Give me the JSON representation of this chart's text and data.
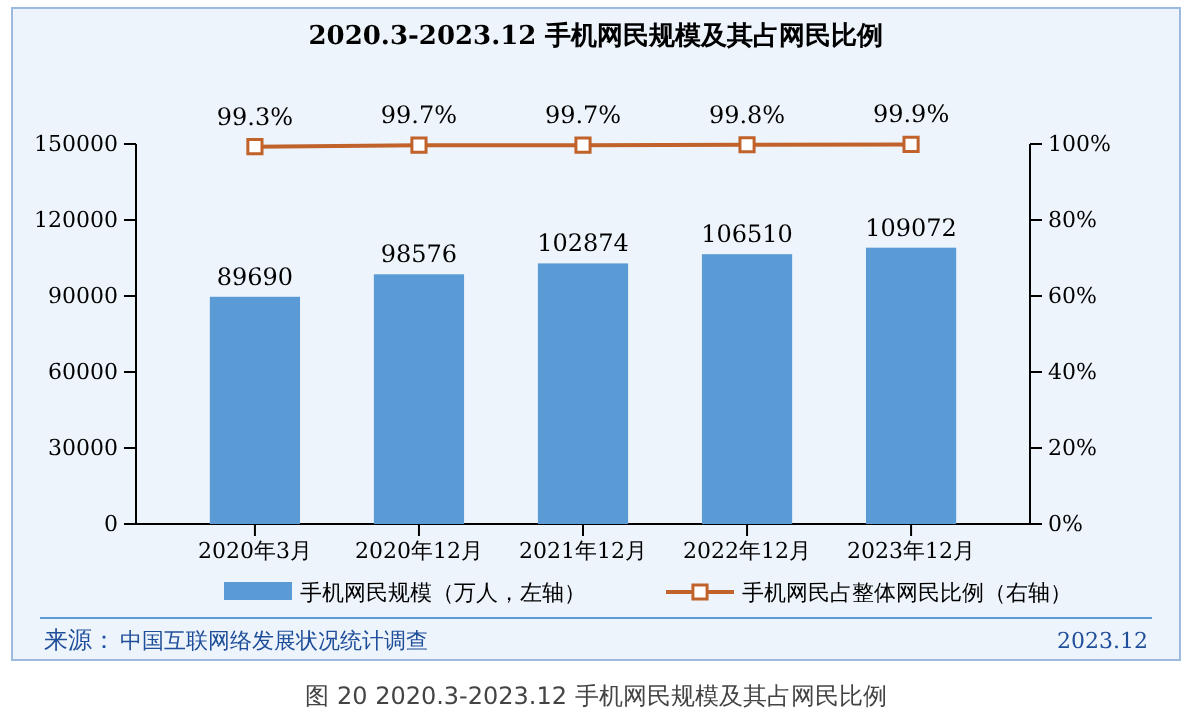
{
  "chart_data": {
    "type": "bar",
    "title": "2020.3-2023.12 手机网民规模及其占网民比例",
    "categories": [
      "2020年3月",
      "2020年12月",
      "2021年12月",
      "2022年12月",
      "2023年12月"
    ],
    "series": [
      {
        "name": "手机网民规模（万人，左轴）",
        "color": "#5b9bd5",
        "values": [
          89690,
          98576,
          102874,
          106510,
          109072
        ],
        "value_labels": [
          "89690",
          "98576",
          "102874",
          "106510",
          "109072"
        ]
      },
      {
        "name": "手机网民占整体网民比例（右轴）",
        "type": "line",
        "axis": "y2",
        "color": "#c0622a",
        "marker": "square",
        "values": [
          99.3,
          99.7,
          99.7,
          99.8,
          99.9
        ],
        "value_labels": [
          "99.3%",
          "99.7%",
          "99.7%",
          "99.8%",
          "99.9%"
        ]
      }
    ],
    "ylim": [
      0,
      150000
    ],
    "yticks": [
      0,
      30000,
      60000,
      90000,
      120000,
      150000
    ],
    "y2lim": [
      0,
      100
    ],
    "y2ticks": [
      {
        "value": 0,
        "label": "0%"
      },
      {
        "value": 20,
        "label": "20%"
      },
      {
        "value": 40,
        "label": "40%"
      },
      {
        "value": 60,
        "label": "60%"
      },
      {
        "value": 80,
        "label": "80%"
      },
      {
        "value": 100,
        "label": "100%"
      }
    ],
    "legend": "bottom",
    "grid": false,
    "annotations": [
      "来源：",
      "中国互联网络发展状况统计调查",
      "2023.12",
      "图 20  2020.3-2023.12 手机网民规模及其占网民比例"
    ]
  }
}
